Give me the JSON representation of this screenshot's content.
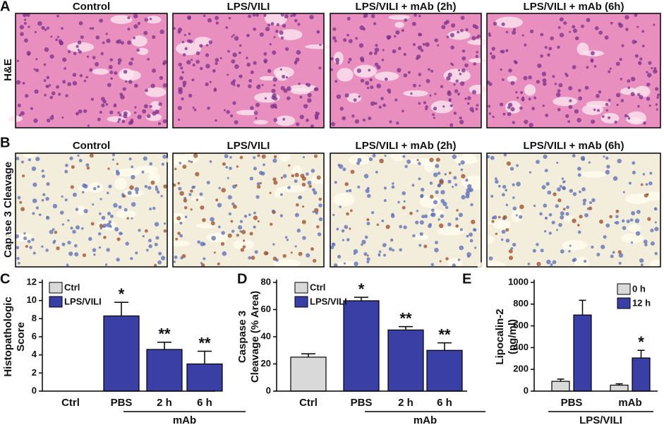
{
  "panel_a": {
    "letter": "A",
    "row_label": "H&E",
    "titles": [
      "Control",
      "LPS/VILI",
      "LPS/VILI + mAb (2h)",
      "LPS/VILI + mAb (6h)"
    ]
  },
  "panel_b": {
    "letter": "B",
    "row_label": "Capase 3 Cleavage",
    "titles": [
      "Control",
      "LPS/VILI",
      "LPS/VILI + mAb (2h)",
      "LPS/VILI + mAb (6h)"
    ]
  },
  "chart_data": [
    {
      "type": "bar",
      "letter": "C",
      "ylabel": [
        "Histopathologic",
        "Score"
      ],
      "categories": [
        "Ctrl",
        "PBS",
        "2 h",
        "6 h"
      ],
      "group_label": "mAb",
      "group_span": [
        "2 h",
        "6 h"
      ],
      "series": [
        {
          "name": "Ctrl",
          "color": "#d9d9d9",
          "values": [
            0,
            null,
            null,
            null
          ],
          "errors": [
            null,
            null,
            null,
            null
          ],
          "significance": [
            null,
            null,
            null,
            null
          ]
        },
        {
          "name": "LPS/VILI",
          "color": "#3a3fa5",
          "values": [
            null,
            8.3,
            4.6,
            3.0
          ],
          "errors": [
            null,
            1.5,
            0.8,
            1.4
          ],
          "significance": [
            null,
            "*",
            "**",
            "**"
          ]
        }
      ],
      "ylim": [
        0,
        12
      ],
      "yticks": [
        0,
        2,
        4,
        6,
        8,
        10,
        12
      ]
    },
    {
      "type": "bar",
      "letter": "D",
      "ylabel": [
        "Caspase 3",
        "Cleavage (% Area)"
      ],
      "categories": [
        "Ctrl",
        "PBS",
        "2 h",
        "6 h"
      ],
      "group_label": "mAb",
      "group_span": [
        "2 h",
        "6 h"
      ],
      "series": [
        {
          "name": "Ctrl",
          "color": "#d9d9d9",
          "values": [
            25,
            null,
            null,
            null
          ],
          "errors": [
            2.5,
            null,
            null,
            null
          ],
          "significance": [
            null,
            null,
            null,
            null
          ]
        },
        {
          "name": "LPS/VILI",
          "color": "#3a3fa5",
          "values": [
            null,
            66.5,
            45,
            30
          ],
          "errors": [
            null,
            2.5,
            2.5,
            5.5
          ],
          "significance": [
            null,
            "*",
            "**",
            "**"
          ]
        }
      ],
      "ylim": [
        0,
        80
      ],
      "yticks": [
        0,
        20,
        40,
        60,
        80
      ]
    },
    {
      "type": "bar",
      "letter": "E",
      "ylabel": [
        "Lipocalin-2",
        "(ng/ml)"
      ],
      "categories": [
        "PBS",
        "mAb"
      ],
      "group_label": "LPS/VILI",
      "group_span": [
        "PBS",
        "mAb"
      ],
      "series": [
        {
          "name": "0 h",
          "color": "#d9d9d9",
          "values": [
            90,
            55
          ],
          "errors": [
            20,
            12
          ],
          "significance": [
            null,
            null
          ]
        },
        {
          "name": "12 h",
          "color": "#3a3fa5",
          "values": [
            700,
            305
          ],
          "errors": [
            135,
            70
          ],
          "significance": [
            null,
            "*"
          ]
        }
      ],
      "ylim": [
        0,
        1000
      ],
      "yticks": [
        0,
        200,
        400,
        600,
        800,
        1000
      ]
    }
  ]
}
